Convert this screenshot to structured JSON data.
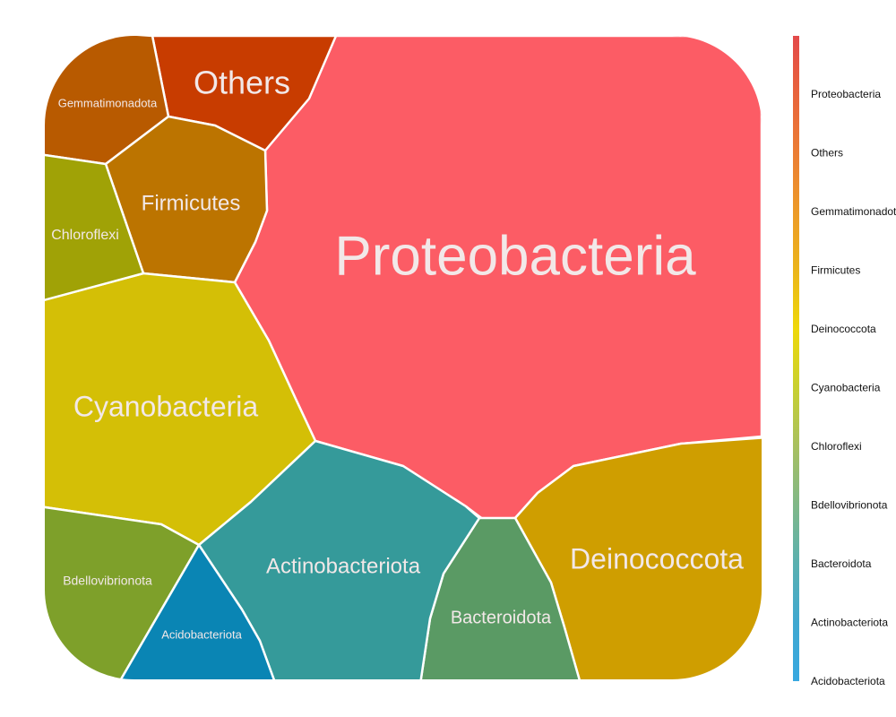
{
  "chart_data": {
    "type": "voronoi_treemap",
    "categories": [
      "Proteobacteria",
      "Others",
      "Gemmatimonadota",
      "Firmicutes",
      "Deinococcota",
      "Cyanobacteria",
      "Chloroflexi",
      "Bdellovibrionota",
      "Bacteroidota",
      "Actinobacteriota",
      "Acidobacteriota"
    ],
    "values": [
      38,
      4,
      4,
      5,
      11,
      11,
      4,
      5,
      5,
      10,
      3
    ],
    "colors": [
      "#fc5c65",
      "#c83c00",
      "#b85a00",
      "#bc7400",
      "#cf9e00",
      "#d4bf06",
      "#a0a206",
      "#7ea02a",
      "#5a9a64",
      "#359a9a",
      "#0a85b4"
    ],
    "legend_colors": [
      "#e34a4a",
      "#e8643c",
      "#eb7d34",
      "#ec9a28",
      "#ebb51a",
      "#eed80a",
      "#c8d030",
      "#a8c060",
      "#80b888",
      "#5ab0b0",
      "#40a8d0",
      "#38a8e0"
    ]
  }
}
